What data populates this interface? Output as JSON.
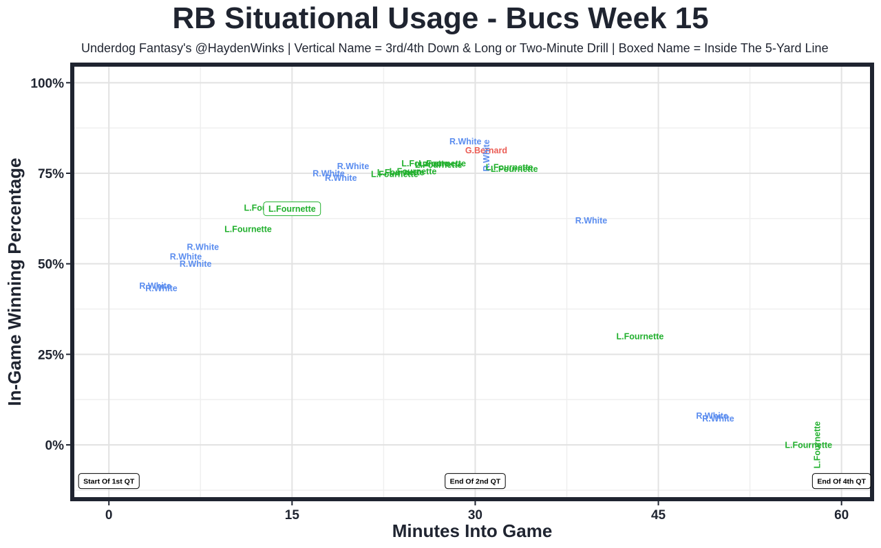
{
  "chart_data": {
    "type": "scatter",
    "title": "RB Situational Usage - Bucs Week 15",
    "subtitle": "Underdog Fantasy's @HaydenWinks | Vertical Name = 3rd/4th Down & Long or Two-Minute Drill | Boxed Name = Inside The 5-Yard Line",
    "xlabel": "Minutes Into Game",
    "ylabel": "In-Game Winning Percentage",
    "xlim": [
      -3,
      62.5
    ],
    "ylim": [
      -15,
      105
    ],
    "x_ticks": [
      0,
      15,
      30,
      45,
      60
    ],
    "x_tick_labels": [
      "0",
      "15",
      "30",
      "45",
      "60"
    ],
    "y_ticks": [
      0,
      25,
      50,
      75,
      100
    ],
    "y_tick_labels": [
      "0%",
      "25%",
      "50%",
      "75%",
      "100%"
    ],
    "grid": true,
    "colors": {
      "R.White": "#5b8def",
      "L.Fournette": "#22b02e",
      "G.Bernard": "#eb5d55"
    },
    "points": [
      {
        "x": 3.8,
        "y": 44.0,
        "name": "R.White",
        "vertical": false,
        "boxed": false
      },
      {
        "x": 4.3,
        "y": 43.3,
        "name": "R.White",
        "vertical": false,
        "boxed": false
      },
      {
        "x": 6.3,
        "y": 52.0,
        "name": "R.White",
        "vertical": false,
        "boxed": false
      },
      {
        "x": 7.1,
        "y": 50.0,
        "name": "R.White",
        "vertical": false,
        "boxed": false
      },
      {
        "x": 7.7,
        "y": 54.7,
        "name": "R.White",
        "vertical": false,
        "boxed": false
      },
      {
        "x": 11.4,
        "y": 59.6,
        "name": "L.Fournette",
        "vertical": false,
        "boxed": false
      },
      {
        "x": 13.0,
        "y": 65.5,
        "name": "L.Fournette",
        "vertical": false,
        "boxed": false
      },
      {
        "x": 15.0,
        "y": 65.2,
        "name": "L.Fournette",
        "vertical": false,
        "boxed": true
      },
      {
        "x": 18.0,
        "y": 75.0,
        "name": "R.White",
        "vertical": false,
        "boxed": false
      },
      {
        "x": 19.0,
        "y": 73.8,
        "name": "R.White",
        "vertical": false,
        "boxed": false
      },
      {
        "x": 20.0,
        "y": 77.0,
        "name": "R.White",
        "vertical": false,
        "boxed": false
      },
      {
        "x": 23.4,
        "y": 74.8,
        "name": "L.Fournette",
        "vertical": false,
        "boxed": false
      },
      {
        "x": 23.9,
        "y": 75.3,
        "name": "L.Fournette",
        "vertical": false,
        "boxed": false
      },
      {
        "x": 24.9,
        "y": 75.6,
        "name": "L.Fournette",
        "vertical": false,
        "boxed": false
      },
      {
        "x": 25.9,
        "y": 77.8,
        "name": "L.Fournette",
        "vertical": false,
        "boxed": false
      },
      {
        "x": 27.0,
        "y": 77.4,
        "name": "L.Fournette",
        "vertical": false,
        "boxed": false
      },
      {
        "x": 27.3,
        "y": 77.8,
        "name": "L.Fournette",
        "vertical": false,
        "boxed": false
      },
      {
        "x": 29.2,
        "y": 83.8,
        "name": "R.White",
        "vertical": false,
        "boxed": false
      },
      {
        "x": 30.9,
        "y": 81.4,
        "name": "G.Bernard",
        "vertical": false,
        "boxed": false
      },
      {
        "x": 30.9,
        "y": 79.9,
        "name": "R.White",
        "vertical": true,
        "boxed": false
      },
      {
        "x": 32.8,
        "y": 76.7,
        "name": "L.Fournette",
        "vertical": false,
        "boxed": false
      },
      {
        "x": 33.2,
        "y": 76.2,
        "name": "L.Fournette",
        "vertical": false,
        "boxed": false
      },
      {
        "x": 39.5,
        "y": 62.0,
        "name": "R.White",
        "vertical": false,
        "boxed": false
      },
      {
        "x": 43.5,
        "y": 30.0,
        "name": "L.Fournette",
        "vertical": false,
        "boxed": false
      },
      {
        "x": 49.4,
        "y": 8.1,
        "name": "R.White",
        "vertical": false,
        "boxed": false
      },
      {
        "x": 49.9,
        "y": 7.3,
        "name": "R.White",
        "vertical": false,
        "boxed": false
      },
      {
        "x": 57.3,
        "y": 0.0,
        "name": "L.Fournette",
        "vertical": false,
        "boxed": false
      },
      {
        "x": 58.0,
        "y": 0.0,
        "name": "L.Fournette",
        "vertical": true,
        "boxed": false
      }
    ],
    "annotations": [
      {
        "x": 0,
        "y": -10,
        "text": "Start Of 1st QT"
      },
      {
        "x": 30,
        "y": -10,
        "text": "End Of 2nd QT"
      },
      {
        "x": 60,
        "y": -10,
        "text": "End Of 4th QT"
      }
    ]
  }
}
